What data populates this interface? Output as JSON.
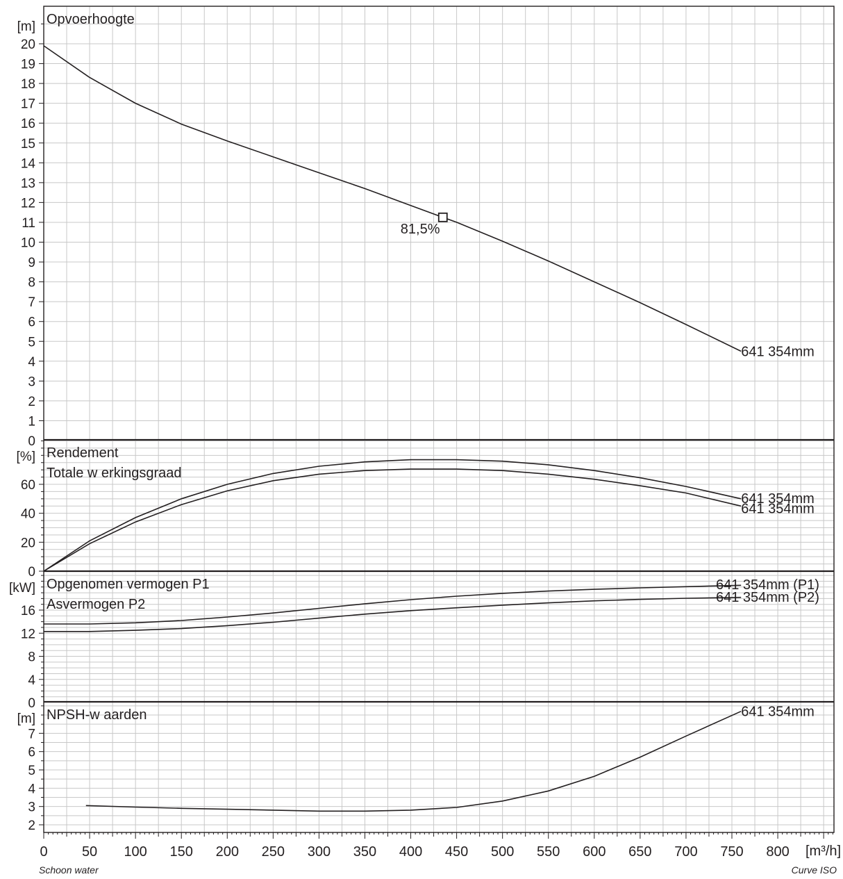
{
  "chart_data": [
    {
      "type": "line",
      "title": "Opvoerhoogte",
      "ylabel": "[m]",
      "ylim": [
        0,
        21.8
      ],
      "yticks": [
        0,
        1,
        2,
        3,
        4,
        5,
        6,
        7,
        8,
        9,
        10,
        11,
        12,
        13,
        14,
        15,
        16,
        17,
        18,
        19,
        20
      ],
      "series": [
        {
          "name": "641 354mm",
          "x": [
            0,
            50,
            100,
            150,
            200,
            250,
            300,
            350,
            400,
            435,
            450,
            500,
            550,
            600,
            650,
            700,
            760
          ],
          "y": [
            19.9,
            18.3,
            17.0,
            15.95,
            15.1,
            14.3,
            13.5,
            12.7,
            11.85,
            11.25,
            11.0,
            10.05,
            9.05,
            8.0,
            6.95,
            5.85,
            4.5
          ]
        }
      ],
      "annotations": [
        {
          "x": 435,
          "y": 11.25,
          "text": "81,5%",
          "marker": "square"
        }
      ]
    },
    {
      "type": "line",
      "title": "Rendement",
      "subtitle": "Totale w erkingsgraad",
      "ylabel": "[%]",
      "ylim": [
        0,
        85
      ],
      "yticks": [
        0,
        20,
        40,
        60
      ],
      "series": [
        {
          "name": "641 354mm",
          "x": [
            0,
            50,
            100,
            150,
            200,
            250,
            300,
            350,
            400,
            450,
            500,
            550,
            600,
            650,
            700,
            760
          ],
          "y": [
            0,
            21,
            37,
            50,
            60,
            67.5,
            72.5,
            75.5,
            77,
            77,
            76,
            73.5,
            69.5,
            64.5,
            58.5,
            50
          ]
        },
        {
          "name": "641 354mm",
          "x": [
            0,
            50,
            100,
            150,
            200,
            250,
            300,
            350,
            400,
            450,
            500,
            550,
            600,
            650,
            700,
            760
          ],
          "y": [
            0,
            19,
            34,
            46,
            55.5,
            62.5,
            67,
            69.5,
            70.5,
            70.5,
            69.5,
            67,
            63.5,
            59,
            54,
            45
          ]
        }
      ]
    },
    {
      "type": "line",
      "title": "Opgenomen vermogen P1",
      "subtitle": "Asvermogen P2",
      "ylabel": "[kW]",
      "ylim": [
        0,
        22.5
      ],
      "yticks": [
        0,
        4,
        8,
        12,
        16
      ],
      "series": [
        {
          "name": "641 354mm (P1)",
          "x": [
            0,
            50,
            100,
            150,
            200,
            250,
            300,
            350,
            400,
            450,
            500,
            550,
            600,
            650,
            700,
            760
          ],
          "y": [
            13.6,
            13.6,
            13.8,
            14.2,
            14.8,
            15.5,
            16.3,
            17.1,
            17.8,
            18.4,
            18.9,
            19.3,
            19.6,
            19.85,
            20.05,
            20.3
          ]
        },
        {
          "name": "641 354mm (P2)",
          "x": [
            0,
            50,
            100,
            150,
            200,
            250,
            300,
            350,
            400,
            450,
            500,
            550,
            600,
            650,
            700,
            760
          ],
          "y": [
            12.3,
            12.3,
            12.5,
            12.8,
            13.3,
            13.9,
            14.6,
            15.3,
            15.9,
            16.4,
            16.85,
            17.25,
            17.6,
            17.85,
            18.05,
            18.2
          ]
        }
      ]
    },
    {
      "type": "line",
      "title": "NPSH-w aarden",
      "ylabel": "[m]",
      "ylim": [
        1.55,
        8.25
      ],
      "yticks": [
        2,
        3,
        4,
        5,
        6,
        7
      ],
      "series": [
        {
          "name": "641 354mm",
          "x": [
            46,
            100,
            150,
            200,
            250,
            300,
            350,
            400,
            450,
            500,
            550,
            600,
            650,
            700,
            760
          ],
          "y": [
            3.05,
            2.97,
            2.9,
            2.85,
            2.8,
            2.75,
            2.75,
            2.8,
            2.95,
            3.3,
            3.85,
            4.65,
            5.7,
            6.85,
            8.2
          ]
        }
      ]
    }
  ],
  "x_axis": {
    "label": "[m³/h]",
    "xlim": [
      0,
      870
    ],
    "ticks": [
      0,
      50,
      100,
      150,
      200,
      250,
      300,
      350,
      400,
      450,
      500,
      550,
      600,
      650,
      700,
      750,
      800
    ]
  },
  "footer": {
    "left": "Schoon water",
    "right": "Curve ISO"
  },
  "colors": {
    "line": "#231f20",
    "grid": "#c8c8c8"
  }
}
